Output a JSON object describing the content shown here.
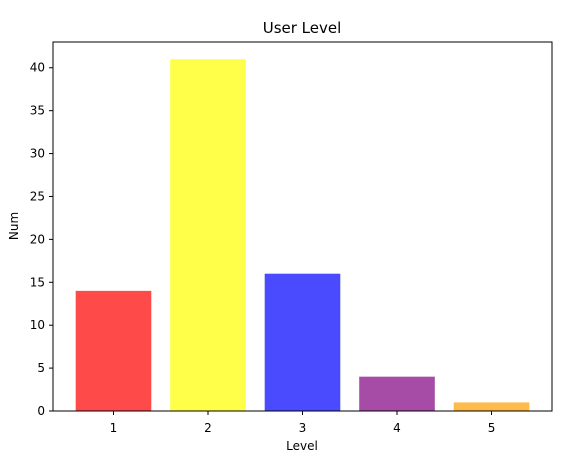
{
  "chart_data": {
    "type": "bar",
    "title": "User Level",
    "xlabel": "Level",
    "ylabel": "Num",
    "categories": [
      "1",
      "2",
      "3",
      "4",
      "5"
    ],
    "values": [
      14,
      41,
      16,
      4,
      1
    ],
    "colors": [
      "#ff4a4a",
      "#ffff4a",
      "#4a4aff",
      "#a64ca6",
      "#ffbb4a"
    ],
    "ylim": [
      0,
      43
    ],
    "yticks": [
      0,
      5,
      10,
      15,
      20,
      25,
      30,
      35,
      40
    ],
    "grid": false
  }
}
